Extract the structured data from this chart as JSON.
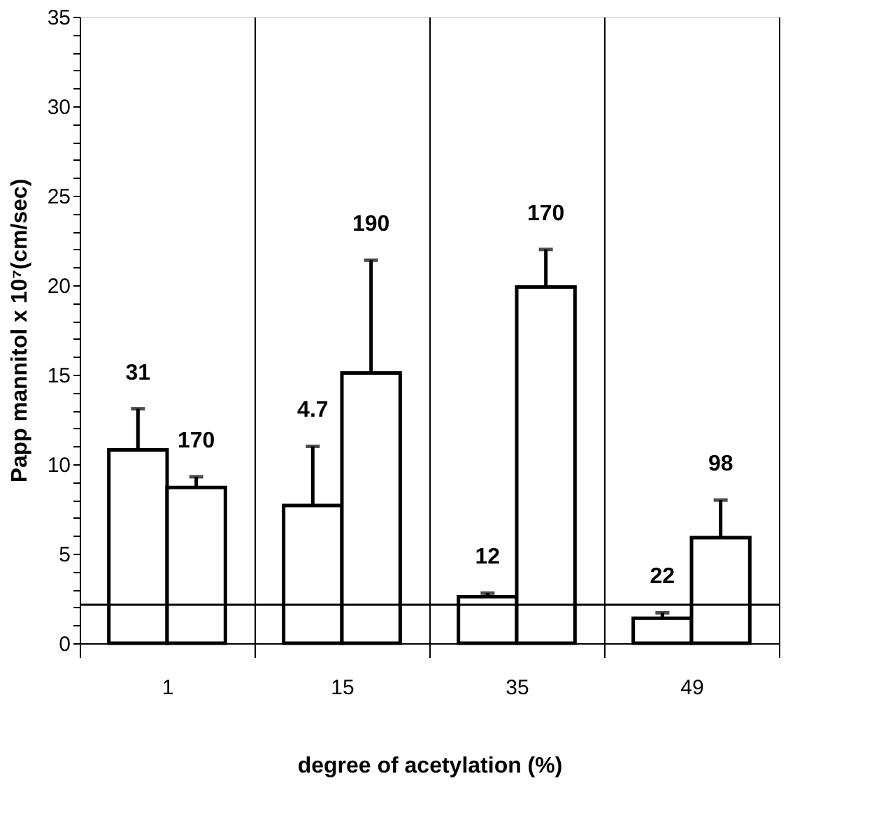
{
  "chart_data": {
    "type": "bar",
    "xlabel": "degree of acetylation (%)",
    "ylabel": "Papp mannitol x 10⁷(cm/sec)",
    "categories": [
      "1",
      "15",
      "35",
      "49"
    ],
    "series": [
      {
        "color": "#ffffff",
        "values": [
          10.8,
          7.7,
          2.6,
          1.4
        ],
        "errors": [
          [
            10.8,
            13.1
          ],
          [
            7.7,
            11.0
          ],
          [
            2.6,
            2.8
          ],
          [
            1.4,
            1.7
          ]
        ]
      },
      {
        "color": "#ffffff",
        "values": [
          8.7,
          15.1,
          19.9,
          5.9
        ],
        "errors": [
          [
            8.7,
            9.3
          ],
          [
            15.1,
            21.4
          ],
          [
            19.9,
            22.0
          ],
          [
            5.9,
            8.0
          ]
        ]
      }
    ],
    "ylim": [
      0,
      35
    ],
    "yticks": [
      0,
      {
        "value": 1,
        "label": null
      },
      {
        "value": 2,
        "label": null
      },
      {
        "value": 3,
        "label": null
      },
      {
        "value": 4,
        "label": null
      },
      5,
      {
        "value": 6,
        "label": null
      },
      {
        "value": 7,
        "label": null
      },
      {
        "value": 8,
        "label": null
      },
      {
        "value": 9,
        "label": null
      },
      10,
      {
        "value": 11,
        "label": null
      },
      {
        "value": 12,
        "label": null
      },
      {
        "value": 13,
        "label": null
      },
      {
        "value": 14,
        "label": null
      },
      15,
      {
        "value": 16,
        "label": null
      },
      {
        "value": 17,
        "label": null
      },
      {
        "value": 18,
        "label": null
      },
      {
        "value": 19,
        "label": null
      },
      20,
      {
        "value": 21,
        "label": null
      },
      {
        "value": 22,
        "label": null
      },
      {
        "value": 23,
        "label": null
      },
      {
        "value": 24,
        "label": null
      },
      25,
      {
        "value": 26,
        "label": null
      },
      {
        "value": 27,
        "label": null
      },
      {
        "value": 28,
        "label": null
      },
      {
        "value": 29,
        "label": null
      },
      30,
      {
        "value": 31,
        "label": null
      },
      {
        "value": 32,
        "label": null
      },
      {
        "value": 33,
        "label": null
      },
      {
        "value": 34,
        "label": null
      },
      35
    ],
    "ref_lines": [
      {
        "axis": "y",
        "value": 2.15,
        "label": null
      }
    ],
    "annotations": [
      "31",
      "170",
      "4.7",
      "190",
      "12",
      "170",
      "22",
      "98"
    ],
    "grid": "x"
  }
}
